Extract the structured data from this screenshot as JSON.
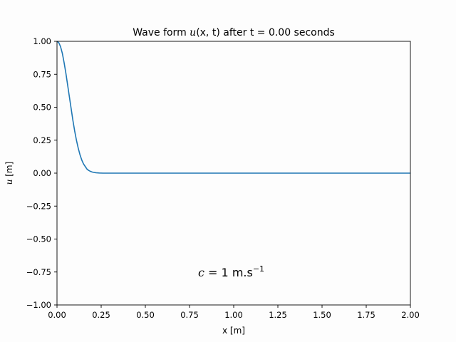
{
  "chart_data": {
    "type": "line",
    "title": {
      "prefix": "Wave form ",
      "math_u": "u",
      "math_args": "(x, t)",
      "suffix": " after t = 0.00 seconds"
    },
    "xlabel": "x [m]",
    "ylabel": {
      "math_u": "u",
      "unit": " [m]"
    },
    "xlim": [
      0.0,
      2.0
    ],
    "ylim": [
      -1.0,
      1.0
    ],
    "xticks": [
      "0.00",
      "0.25",
      "0.50",
      "0.75",
      "1.00",
      "1.25",
      "1.50",
      "1.75",
      "2.00"
    ],
    "yticks": [
      "−1.00",
      "−0.75",
      "−0.50",
      "−0.25",
      "0.00",
      "0.25",
      "0.50",
      "0.75",
      "1.00"
    ],
    "annotation": {
      "c": "c",
      "eq": " = 1 m.s",
      "exp": "−1"
    },
    "grid": false,
    "series": [
      {
        "color": "#1f77b4",
        "x": [
          0.0,
          0.01,
          0.02,
          0.03,
          0.04,
          0.05,
          0.06,
          0.07,
          0.08,
          0.09,
          0.1,
          0.11,
          0.12,
          0.13,
          0.14,
          0.15,
          0.16,
          0.17,
          0.18,
          0.19,
          0.2,
          0.22,
          0.24,
          0.26,
          0.28,
          0.3,
          0.5,
          1.0,
          1.5,
          2.0
        ],
        "y": [
          1.0,
          0.99,
          0.96,
          0.91,
          0.84,
          0.76,
          0.67,
          0.58,
          0.49,
          0.4,
          0.32,
          0.25,
          0.19,
          0.14,
          0.1,
          0.07,
          0.05,
          0.03,
          0.02,
          0.013,
          0.008,
          0.003,
          0.001,
          0.0,
          0.0,
          0.0,
          0.0,
          0.0,
          0.0,
          0.0
        ]
      }
    ]
  }
}
